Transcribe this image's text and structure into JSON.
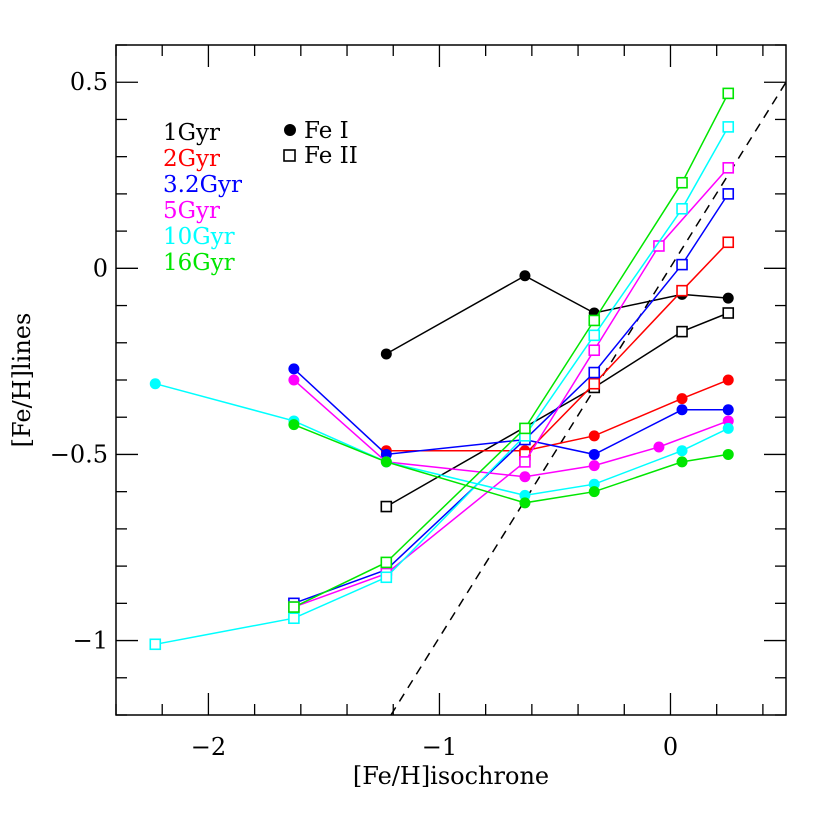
{
  "chart_data": {
    "type": "line",
    "title": "",
    "xlabel": "[Fe/H]isochrone",
    "ylabel": "[Fe/H]lines",
    "xlim": [
      -2.4,
      0.5
    ],
    "ylim": [
      -1.2,
      0.6
    ],
    "x_ticks": [
      -2,
      -1,
      0
    ],
    "x_tick_labels": [
      "−2",
      "−1",
      "0"
    ],
    "y_ticks": [
      -1,
      -0.5,
      0,
      0.5
    ],
    "y_tick_labels": [
      "−1",
      "−0.5",
      "0",
      "0.5"
    ],
    "x_minor_step": 0.2,
    "y_minor_step": 0.1,
    "grid": false,
    "legend_position": "top-left",
    "marker_legend": [
      {
        "label": "Fe I",
        "marker": "filled-circle"
      },
      {
        "label": "Fe II",
        "marker": "open-square"
      }
    ],
    "reference_line": {
      "style": "dashed",
      "color": "#000000",
      "x": [
        -1.21,
        0.5
      ],
      "y": [
        -1.2,
        0.5
      ]
    },
    "series": [
      {
        "name": "1Gyr",
        "color": "#000000",
        "fe1": {
          "x": [
            -1.23,
            -0.63,
            -0.33,
            0.05,
            0.25
          ],
          "y": [
            -0.23,
            -0.02,
            -0.12,
            -0.07,
            -0.08
          ]
        },
        "fe2": {
          "x": [
            -1.23,
            -0.33,
            0.05,
            0.25
          ],
          "y": [
            -0.64,
            -0.32,
            -0.17,
            -0.12
          ]
        }
      },
      {
        "name": "2Gyr",
        "color": "#ff0000",
        "fe1": {
          "x": [
            -1.23,
            -0.63,
            -0.33,
            0.05,
            0.25
          ],
          "y": [
            -0.49,
            -0.49,
            -0.45,
            -0.35,
            -0.3
          ]
        },
        "fe2": {
          "x": [
            -0.63,
            -0.33,
            0.05,
            0.25
          ],
          "y": [
            -0.5,
            -0.31,
            -0.06,
            0.07
          ]
        }
      },
      {
        "name": "3.2Gyr",
        "color": "#0000ff",
        "fe1": {
          "x": [
            -1.63,
            -1.23,
            -0.63,
            -0.33,
            0.05,
            0.25
          ],
          "y": [
            -0.27,
            -0.5,
            -0.46,
            -0.5,
            -0.38,
            -0.38
          ]
        },
        "fe2": {
          "x": [
            -1.63,
            -1.23,
            -0.63,
            -0.33,
            0.05,
            0.25
          ],
          "y": [
            -0.9,
            -0.81,
            -0.46,
            -0.28,
            0.01,
            0.2
          ]
        }
      },
      {
        "name": "5Gyr",
        "color": "#ff00ff",
        "fe1": {
          "x": [
            -1.63,
            -1.23,
            -0.63,
            -0.33,
            -0.05,
            0.25
          ],
          "y": [
            -0.3,
            -0.52,
            -0.56,
            -0.53,
            -0.48,
            -0.41
          ]
        },
        "fe2": {
          "x": [
            -1.63,
            -1.23,
            -0.63,
            -0.33,
            -0.05,
            0.25
          ],
          "y": [
            -0.91,
            -0.82,
            -0.52,
            -0.22,
            0.06,
            0.27
          ]
        }
      },
      {
        "name": "10Gyr",
        "color": "#00ffff",
        "fe1": {
          "x": [
            -2.23,
            -1.63,
            -1.23,
            -0.63,
            -0.33,
            0.05,
            0.25
          ],
          "y": [
            -0.31,
            -0.41,
            -0.52,
            -0.61,
            -0.58,
            -0.49,
            -0.43
          ]
        },
        "fe2": {
          "x": [
            -2.23,
            -1.63,
            -1.23,
            -0.63,
            -0.33,
            0.05,
            0.25
          ],
          "y": [
            -1.01,
            -0.94,
            -0.83,
            -0.45,
            -0.18,
            0.16,
            0.38
          ]
        }
      },
      {
        "name": "16Gyr",
        "color": "#00e600",
        "fe1": {
          "x": [
            -1.63,
            -1.23,
            -0.63,
            -0.33,
            0.05,
            0.25
          ],
          "y": [
            -0.42,
            -0.52,
            -0.63,
            -0.6,
            -0.52,
            -0.5
          ]
        },
        "fe2": {
          "x": [
            -1.63,
            -1.23,
            -0.63,
            -0.33,
            0.05,
            0.25
          ],
          "y": [
            -0.91,
            -0.79,
            -0.43,
            -0.14,
            0.23,
            0.47
          ]
        }
      }
    ]
  }
}
